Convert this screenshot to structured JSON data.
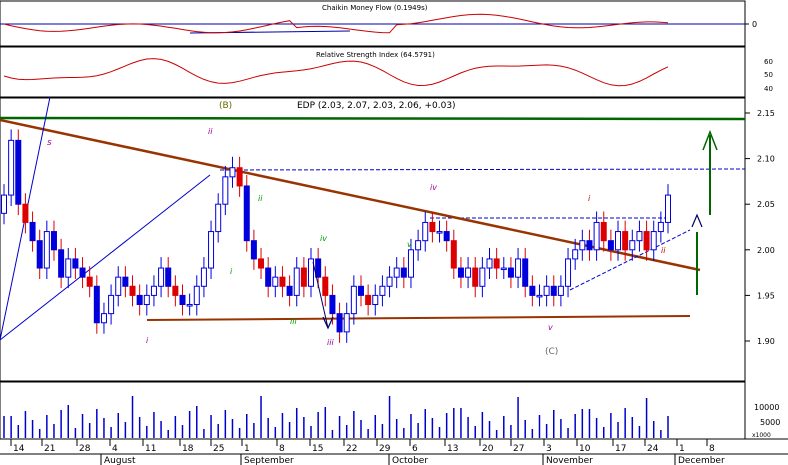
{
  "panels": {
    "cmf_title": "Chaikin Money Flow (0.1949s)",
    "cmf_ticks": [
      "0"
    ],
    "rsi_title": "Relative Strength Index (64.5791)",
    "rsi_ticks": [
      "60",
      "50",
      "40"
    ],
    "price_title": "EDP (2.03, 2.07, 2.03, 2.06, +0.03)",
    "price_ticks": [
      "2.15",
      "2.10",
      "2.05",
      "2.00",
      "1.95",
      "1.90"
    ],
    "volume_ticks": [
      "10000",
      "5000"
    ],
    "volume_unit": "x1000"
  },
  "colors": {
    "up": "#0000dd",
    "down": "#dd0000",
    "neutral": "#444444",
    "trend": "#993300",
    "support": "#993300",
    "resistance": "#006600",
    "channel": "#0000cc",
    "cmf": "#cc0000",
    "rsi": "#cc0000",
    "wave_primary": "#990099",
    "wave_minor": "#009900",
    "wave_upper": "#666600",
    "arrow_up": "#006600",
    "arrow_blue": "#000066"
  },
  "waves": {
    "top_b": "(B)",
    "bottom_c": "(C)",
    "labels": [
      "s",
      "i",
      "ii",
      "iii",
      "iv",
      "v",
      "i",
      "ii",
      "i",
      "ii",
      "iii",
      "iv",
      "v"
    ]
  },
  "chart_data": {
    "type": "candlestick",
    "title": "EDP (2.03, 2.07, 2.03, 2.06, +0.03)",
    "ylim": [
      1.86,
      2.16
    ],
    "yticks": [
      2.15,
      2.1,
      2.05,
      2.0,
      1.95,
      1.9
    ],
    "x_day_labels": [
      "14",
      "21",
      "28",
      "4",
      "11",
      "18",
      "25",
      "1",
      "8",
      "15",
      "22",
      "29",
      "6",
      "13",
      "20",
      "27",
      "3",
      "10",
      "17",
      "24",
      "1",
      "8"
    ],
    "x_month_labels": [
      "August",
      "September",
      "October",
      "November",
      "December"
    ],
    "close": [
      2.06,
      2.12,
      2.05,
      2.03,
      2.01,
      1.98,
      2.02,
      2.0,
      1.97,
      1.99,
      1.98,
      1.97,
      1.96,
      1.92,
      1.93,
      1.95,
      1.97,
      1.96,
      1.95,
      1.94,
      1.95,
      1.96,
      1.98,
      1.96,
      1.95,
      1.94,
      1.94,
      1.96,
      1.98,
      2.02,
      2.05,
      2.08,
      2.09,
      2.07,
      2.01,
      1.99,
      1.98,
      1.96,
      1.97,
      1.96,
      1.95,
      1.98,
      1.96,
      1.99,
      1.97,
      1.95,
      1.93,
      1.91,
      1.93,
      1.96,
      1.95,
      1.94,
      1.95,
      1.96,
      1.97,
      1.98,
      1.97,
      2.0,
      2.01,
      2.03,
      2.02,
      2.02,
      2.01,
      1.98,
      1.97,
      1.98,
      1.96,
      1.98,
      1.99,
      1.98,
      1.98,
      1.97,
      1.99,
      1.96,
      1.95,
      1.95,
      1.96,
      1.95,
      1.96,
      1.99,
      2.0,
      2.01,
      2.0,
      2.03,
      2.01,
      2.0,
      2.02,
      2.0,
      2.01,
      2.02,
      2.0,
      2.02,
      2.03,
      2.06
    ],
    "resistance_levels": [
      2.14,
      2.087,
      2.03
    ],
    "support_level": 1.92
  }
}
